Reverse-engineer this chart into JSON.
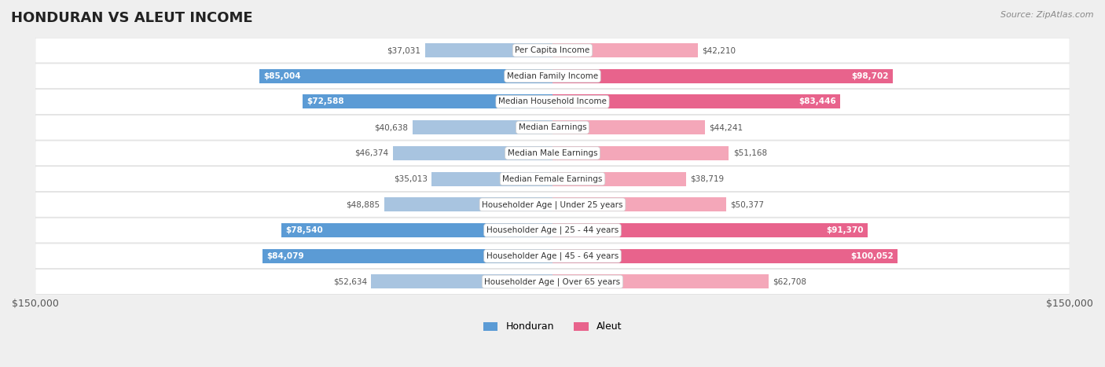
{
  "title": "HONDURAN VS ALEUT INCOME",
  "source": "Source: ZipAtlas.com",
  "categories": [
    "Per Capita Income",
    "Median Family Income",
    "Median Household Income",
    "Median Earnings",
    "Median Male Earnings",
    "Median Female Earnings",
    "Householder Age | Under 25 years",
    "Householder Age | 25 - 44 years",
    "Householder Age | 45 - 64 years",
    "Householder Age | Over 65 years"
  ],
  "honduran_values": [
    37031,
    85004,
    72588,
    40638,
    46374,
    35013,
    48885,
    78540,
    84079,
    52634
  ],
  "aleut_values": [
    42210,
    98702,
    83446,
    44241,
    51168,
    38719,
    50377,
    91370,
    100052,
    62708
  ],
  "honduran_color_light": "#a8c4e0",
  "honduran_color_dark": "#5b9bd5",
  "aleut_color_light": "#f4a7b9",
  "aleut_color_dark": "#e8638c",
  "max_value": 150000,
  "bg_color": "#efefef",
  "bar_height": 0.55,
  "legend_honduran": "Honduran",
  "legend_aleut": "Aleut"
}
